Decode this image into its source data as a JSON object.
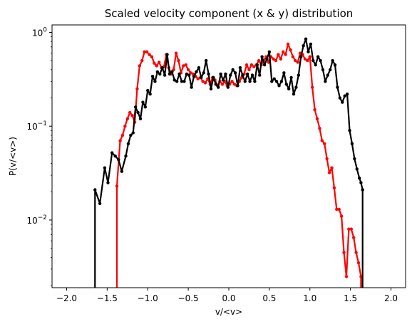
{
  "chart_data": {
    "type": "line",
    "title": "Scaled velocity component (x & y) distribution",
    "xlabel": "v/<v>",
    "ylabel": "P(v/<v>)",
    "xlim": [
      -2.18,
      2.18
    ],
    "ylim": [
      0.0019,
      1.2
    ],
    "yscale": "log",
    "grid": false,
    "x_ticks": [
      {
        "value": -2.0,
        "label": "−2.0"
      },
      {
        "value": -1.5,
        "label": "−1.5"
      },
      {
        "value": -1.0,
        "label": "−1.0"
      },
      {
        "value": -0.5,
        "label": "−0.5"
      },
      {
        "value": 0.0,
        "label": "0.0"
      },
      {
        "value": 0.5,
        "label": "0.5"
      },
      {
        "value": 1.0,
        "label": "1.0"
      },
      {
        "value": 1.5,
        "label": "1.5"
      },
      {
        "value": 2.0,
        "label": "2.0"
      }
    ],
    "y_ticks": [
      {
        "value": 0.01,
        "base": "10",
        "exp": "−2"
      },
      {
        "value": 0.1,
        "base": "10",
        "exp": "−1"
      },
      {
        "value": 1,
        "base": "10",
        "exp": "0"
      }
    ],
    "series": [
      {
        "color": "#ff0000",
        "x": [
          -1.38,
          -1.38,
          -1.34,
          -1.31,
          -1.28,
          -1.25,
          -1.22,
          -1.19,
          -1.16,
          -1.13,
          -1.1,
          -1.07,
          -1.04,
          -1.01,
          -0.98,
          -0.95,
          -0.92,
          -0.89,
          -0.86,
          -0.83,
          -0.8,
          -0.77,
          -0.74,
          -0.71,
          -0.68,
          -0.65,
          -0.62,
          -0.59,
          -0.56,
          -0.53,
          -0.5,
          -0.47,
          -0.44,
          -0.41,
          -0.38,
          -0.35,
          -0.32,
          -0.29,
          -0.26,
          -0.23,
          -0.2,
          -0.17,
          -0.14,
          -0.11,
          -0.08,
          -0.05,
          -0.02,
          0.01,
          0.04,
          0.07,
          0.1,
          0.13,
          0.16,
          0.19,
          0.22,
          0.25,
          0.28,
          0.31,
          0.34,
          0.37,
          0.4,
          0.43,
          0.46,
          0.49,
          0.52,
          0.55,
          0.58,
          0.61,
          0.64,
          0.67,
          0.7,
          0.73,
          0.76,
          0.79,
          0.82,
          0.85,
          0.88,
          0.91,
          0.94,
          0.97,
          1.0,
          1.03,
          1.06,
          1.09,
          1.12,
          1.15,
          1.18,
          1.21,
          1.24,
          1.27,
          1.3,
          1.33,
          1.36,
          1.39,
          1.42,
          1.45,
          1.48,
          1.51,
          1.54,
          1.57,
          1.6,
          1.63,
          1.63
        ],
        "y": [
          0.0019,
          0.023,
          0.07,
          0.08,
          0.1,
          0.12,
          0.14,
          0.13,
          0.11,
          0.25,
          0.44,
          0.5,
          0.62,
          0.62,
          0.58,
          0.55,
          0.47,
          0.44,
          0.48,
          0.42,
          0.43,
          0.58,
          0.42,
          0.36,
          0.4,
          0.6,
          0.5,
          0.37,
          0.44,
          0.45,
          0.4,
          0.37,
          0.36,
          0.34,
          0.32,
          0.33,
          0.3,
          0.29,
          0.32,
          0.28,
          0.33,
          0.31,
          0.27,
          0.3,
          0.28,
          0.3,
          0.27,
          0.28,
          0.3,
          0.28,
          0.27,
          0.3,
          0.33,
          0.36,
          0.45,
          0.4,
          0.45,
          0.43,
          0.45,
          0.5,
          0.45,
          0.5,
          0.55,
          0.48,
          0.55,
          0.52,
          0.5,
          0.58,
          0.52,
          0.62,
          0.58,
          0.75,
          0.65,
          0.55,
          0.5,
          0.48,
          0.6,
          0.58,
          0.52,
          0.5,
          0.55,
          0.26,
          0.15,
          0.12,
          0.095,
          0.07,
          0.065,
          0.045,
          0.032,
          0.036,
          0.022,
          0.013,
          0.013,
          0.011,
          0.0045,
          0.0025,
          0.008,
          0.008,
          0.0065,
          0.0045,
          0.0035,
          0.0025,
          0.0019
        ]
      },
      {
        "color": "#000000",
        "x": [
          -1.65,
          -1.65,
          -1.59,
          -1.53,
          -1.49,
          -1.44,
          -1.4,
          -1.36,
          -1.32,
          -1.27,
          -1.24,
          -1.21,
          -1.18,
          -1.15,
          -1.12,
          -1.09,
          -1.06,
          -1.03,
          -1.0,
          -0.97,
          -0.94,
          -0.91,
          -0.88,
          -0.85,
          -0.82,
          -0.79,
          -0.76,
          -0.73,
          -0.7,
          -0.67,
          -0.64,
          -0.61,
          -0.58,
          -0.55,
          -0.52,
          -0.49,
          -0.46,
          -0.43,
          -0.4,
          -0.37,
          -0.34,
          -0.31,
          -0.28,
          -0.25,
          -0.22,
          -0.19,
          -0.16,
          -0.13,
          -0.1,
          -0.07,
          -0.04,
          -0.01,
          0.02,
          0.05,
          0.08,
          0.11,
          0.14,
          0.17,
          0.2,
          0.23,
          0.26,
          0.29,
          0.32,
          0.35,
          0.38,
          0.41,
          0.44,
          0.47,
          0.5,
          0.53,
          0.56,
          0.59,
          0.62,
          0.65,
          0.68,
          0.71,
          0.74,
          0.77,
          0.8,
          0.83,
          0.86,
          0.89,
          0.92,
          0.95,
          0.98,
          1.01,
          1.04,
          1.07,
          1.1,
          1.13,
          1.16,
          1.19,
          1.22,
          1.25,
          1.28,
          1.31,
          1.34,
          1.37,
          1.4,
          1.43,
          1.46,
          1.49,
          1.52,
          1.55,
          1.58,
          1.61,
          1.63,
          1.65,
          1.65
        ],
        "y": [
          0.0019,
          0.021,
          0.015,
          0.036,
          0.025,
          0.052,
          0.048,
          0.044,
          0.033,
          0.048,
          0.065,
          0.08,
          0.085,
          0.16,
          0.14,
          0.12,
          0.18,
          0.16,
          0.24,
          0.22,
          0.34,
          0.3,
          0.38,
          0.36,
          0.42,
          0.35,
          0.58,
          0.36,
          0.38,
          0.31,
          0.3,
          0.36,
          0.3,
          0.3,
          0.36,
          0.35,
          0.26,
          0.34,
          0.38,
          0.42,
          0.33,
          0.37,
          0.5,
          0.36,
          0.25,
          0.33,
          0.28,
          0.26,
          0.36,
          0.31,
          0.36,
          0.26,
          0.35,
          0.4,
          0.37,
          0.27,
          0.42,
          0.35,
          0.3,
          0.36,
          0.3,
          0.35,
          0.3,
          0.45,
          0.35,
          0.55,
          0.45,
          0.52,
          0.62,
          0.3,
          0.32,
          0.3,
          0.27,
          0.3,
          0.37,
          0.28,
          0.25,
          0.33,
          0.22,
          0.26,
          0.35,
          0.55,
          0.72,
          0.85,
          0.62,
          0.75,
          0.5,
          0.45,
          0.55,
          0.5,
          0.4,
          0.3,
          0.35,
          0.4,
          0.5,
          0.45,
          0.26,
          0.2,
          0.18,
          0.21,
          0.22,
          0.09,
          0.065,
          0.045,
          0.035,
          0.028,
          0.025,
          0.021,
          0.0019
        ]
      }
    ]
  }
}
